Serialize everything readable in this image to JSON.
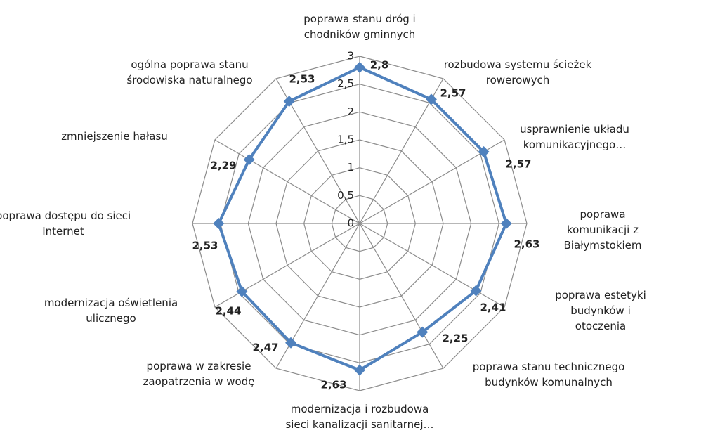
{
  "chart_data": {
    "type": "radar",
    "categories": [
      "poprawa stanu dróg i\nchodników gminnych",
      "rozbudowa systemu ścieżek\nrowerowych",
      "usprawnienie układu\nkomunikacyjnego…",
      "poprawa komunikacji z\nBiałymstokiem",
      "poprawa estetyki budynków i\notoczenia",
      "poprawa stanu technicznego\nbudynków komunalnych",
      "modernizacja i rozbudowa\nsieci kanalizacji sanitarnej…",
      "poprawa w zakresie\nzaopatrzenia w wodę",
      "modernizacja oświetlenia\nulicznego",
      "poprawa dostępu do sieci\nInternet",
      "zmniejszenie hałasu",
      "ogólna poprawa stanu\nśrodowiska naturalnego"
    ],
    "series": [
      {
        "color": "#4f81bd",
        "values": [
          2.8,
          2.57,
          2.57,
          2.63,
          2.41,
          2.25,
          2.63,
          2.47,
          2.44,
          2.53,
          2.29,
          2.53
        ],
        "value_labels": [
          "2,8",
          "2,57",
          "2,57",
          "2,63",
          "2,41",
          "2,25",
          "2,63",
          "2,47",
          "2,44",
          "2,53",
          "2,29",
          "2,53"
        ]
      }
    ],
    "ylim": [
      0,
      3
    ],
    "yticks": [
      0,
      {
        "value": 0.5,
        "label": "0,5"
      },
      1,
      {
        "value": 1.5,
        "label": "1,5"
      },
      2,
      {
        "value": 2.5,
        "label": "2,5"
      },
      3
    ],
    "grid": true
  }
}
